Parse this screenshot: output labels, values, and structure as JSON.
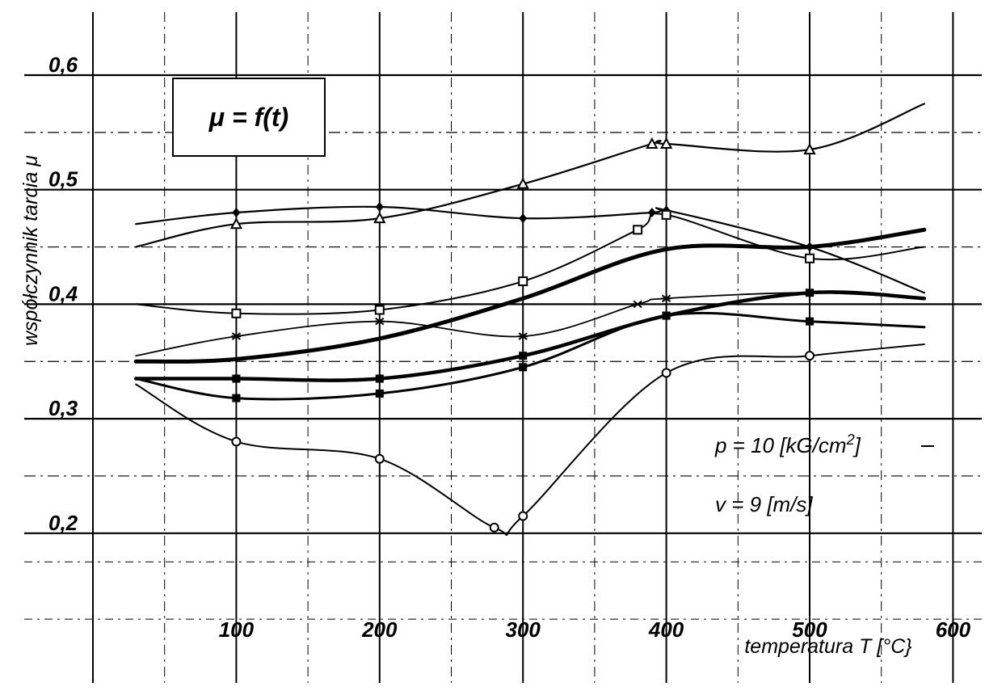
{
  "chart_data": {
    "type": "line",
    "formula": "μ = f(t)",
    "xlabel": "temperatura T [°C}",
    "ylabel": "współczynnik tarcia  μ",
    "xlim": [
      0,
      600
    ],
    "ylim": [
      0.15,
      0.65
    ],
    "x_ticks": [
      "100",
      "200",
      "300",
      "400",
      "500",
      "600"
    ],
    "y_ticks": [
      "0,2",
      "0,3",
      "0,4",
      "0,5",
      "0,6"
    ],
    "grid": true,
    "annotations": {
      "pressure_text": "p = 10 [kG/cm",
      "pressure_sup": "2",
      "pressure_close": "]",
      "velocity": "v = 9 [m/s]"
    },
    "series": [
      {
        "marker": "triangle",
        "points": [
          [
            30,
            0.45
          ],
          [
            100,
            0.47
          ],
          [
            200,
            0.475
          ],
          [
            300,
            0.505
          ],
          [
            390,
            0.54
          ],
          [
            400,
            0.54
          ],
          [
            500,
            0.535
          ],
          [
            580,
            0.575
          ]
        ]
      },
      {
        "marker": "diamond",
        "points": [
          [
            30,
            0.47
          ],
          [
            100,
            0.48
          ],
          [
            200,
            0.485
          ],
          [
            300,
            0.475
          ],
          [
            390,
            0.48
          ],
          [
            400,
            0.482
          ],
          [
            500,
            0.45
          ],
          [
            580,
            0.41
          ]
        ]
      },
      {
        "marker": "square-open",
        "points": [
          [
            30,
            0.4
          ],
          [
            100,
            0.392
          ],
          [
            200,
            0.395
          ],
          [
            300,
            0.42
          ],
          [
            380,
            0.465
          ],
          [
            400,
            0.478
          ],
          [
            500,
            0.44
          ],
          [
            580,
            0.45
          ]
        ]
      },
      {
        "marker": "star",
        "points": [
          [
            30,
            0.355
          ],
          [
            100,
            0.372
          ],
          [
            200,
            0.385
          ],
          [
            300,
            0.372
          ],
          [
            380,
            0.4
          ],
          [
            400,
            0.405
          ],
          [
            500,
            0.41
          ],
          [
            580,
            0.405
          ]
        ]
      },
      {
        "marker": "none",
        "points": [
          [
            30,
            0.35
          ],
          [
            100,
            0.352
          ],
          [
            200,
            0.37
          ],
          [
            300,
            0.405
          ],
          [
            400,
            0.448
          ],
          [
            500,
            0.45
          ],
          [
            580,
            0.465
          ]
        ]
      },
      {
        "marker": "square-filled",
        "points": [
          [
            30,
            0.335
          ],
          [
            100,
            0.335
          ],
          [
            200,
            0.335
          ],
          [
            300,
            0.355
          ],
          [
            400,
            0.39
          ],
          [
            500,
            0.41
          ],
          [
            580,
            0.405
          ]
        ]
      },
      {
        "marker": "square-filled",
        "points": [
          [
            30,
            0.335
          ],
          [
            100,
            0.318
          ],
          [
            200,
            0.322
          ],
          [
            300,
            0.345
          ],
          [
            400,
            0.39
          ],
          [
            500,
            0.385
          ],
          [
            580,
            0.38
          ]
        ]
      },
      {
        "marker": "circle-open",
        "points": [
          [
            30,
            0.33
          ],
          [
            100,
            0.28
          ],
          [
            200,
            0.265
          ],
          [
            280,
            0.205
          ],
          [
            300,
            0.215
          ],
          [
            400,
            0.34
          ],
          [
            500,
            0.355
          ],
          [
            580,
            0.365
          ]
        ]
      }
    ]
  }
}
